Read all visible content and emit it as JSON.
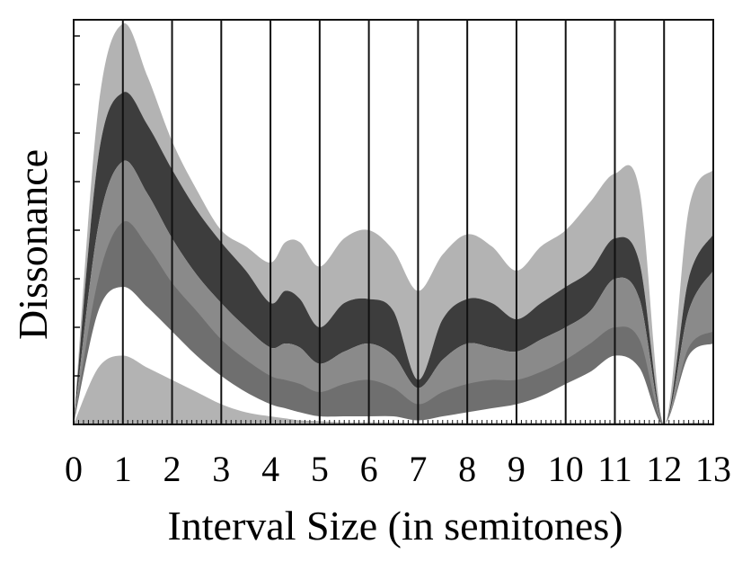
{
  "chart_data": {
    "type": "area",
    "title": "",
    "xlabel": "Interval Size (in semitones)",
    "ylabel": "Dissonance",
    "xlim": [
      0,
      13
    ],
    "ylim": [
      0,
      1
    ],
    "x_ticks": [
      "0",
      "1",
      "2",
      "3",
      "4",
      "5",
      "6",
      "7",
      "8",
      "9",
      "10",
      "11",
      "12",
      "13"
    ],
    "vertical_gridlines": [
      1,
      2,
      3,
      4,
      5,
      6,
      7,
      8,
      9,
      10,
      11,
      12
    ],
    "y_ticks_unlabeled": [
      0.12,
      0.24,
      0.36,
      0.48,
      0.6,
      0.72,
      0.84,
      0.96
    ],
    "grid": true,
    "x": [
      0,
      0.5,
      1,
      1.5,
      2,
      2.5,
      3,
      3.5,
      4,
      4.3,
      4.6,
      5,
      5.5,
      6,
      6.5,
      7,
      7.5,
      8,
      8.5,
      9,
      9.5,
      10,
      10.5,
      11,
      11.5,
      12,
      12.5,
      13
    ],
    "bands": [
      {
        "fill": "#b3b3b3",
        "upper": [
          0.0,
          0.78,
          0.99,
          0.86,
          0.7,
          0.58,
          0.48,
          0.44,
          0.4,
          0.45,
          0.45,
          0.39,
          0.46,
          0.48,
          0.43,
          0.33,
          0.42,
          0.47,
          0.44,
          0.38,
          0.44,
          0.48,
          0.55,
          0.62,
          0.58,
          0.0,
          0.53,
          0.63
        ],
        "lower": [
          0.0,
          0.66,
          0.82,
          0.74,
          0.63,
          0.53,
          0.45,
          0.38,
          0.3,
          0.33,
          0.31,
          0.24,
          0.3,
          0.31,
          0.28,
          0.11,
          0.26,
          0.31,
          0.3,
          0.26,
          0.3,
          0.34,
          0.38,
          0.46,
          0.4,
          0.0,
          0.36,
          0.47
        ]
      },
      {
        "fill": "#3d3d3d",
        "upper": [
          0.0,
          0.66,
          0.82,
          0.74,
          0.63,
          0.53,
          0.45,
          0.38,
          0.3,
          0.33,
          0.31,
          0.24,
          0.3,
          0.31,
          0.28,
          0.11,
          0.26,
          0.31,
          0.3,
          0.26,
          0.3,
          0.34,
          0.38,
          0.46,
          0.4,
          0.0,
          0.36,
          0.47
        ],
        "lower": [
          0.0,
          0.49,
          0.65,
          0.57,
          0.46,
          0.37,
          0.3,
          0.24,
          0.19,
          0.2,
          0.19,
          0.15,
          0.18,
          0.2,
          0.17,
          0.09,
          0.16,
          0.2,
          0.19,
          0.18,
          0.21,
          0.24,
          0.28,
          0.36,
          0.31,
          0.0,
          0.28,
          0.38
        ]
      },
      {
        "fill": "#8a8a8a",
        "upper": [
          0.0,
          0.49,
          0.65,
          0.57,
          0.46,
          0.37,
          0.3,
          0.24,
          0.19,
          0.2,
          0.19,
          0.15,
          0.18,
          0.2,
          0.17,
          0.09,
          0.16,
          0.2,
          0.19,
          0.18,
          0.21,
          0.24,
          0.28,
          0.36,
          0.31,
          0.0,
          0.28,
          0.38
        ]
      },
      {
        "fill": "#6f6f6f",
        "upper": [
          0.0,
          0.36,
          0.5,
          0.44,
          0.35,
          0.28,
          0.21,
          0.16,
          0.12,
          0.11,
          0.1,
          0.08,
          0.1,
          0.11,
          0.09,
          0.05,
          0.08,
          0.1,
          0.11,
          0.11,
          0.13,
          0.16,
          0.2,
          0.24,
          0.21,
          0.0,
          0.19,
          0.23
        ]
      },
      {
        "fill": "#ffffff",
        "upper": [
          0.0,
          0.28,
          0.34,
          0.29,
          0.23,
          0.17,
          0.12,
          0.08,
          0.05,
          0.04,
          0.03,
          0.02,
          0.02,
          0.02,
          0.02,
          0.01,
          0.02,
          0.03,
          0.04,
          0.05,
          0.07,
          0.1,
          0.13,
          0.17,
          0.14,
          0.0,
          0.17,
          0.2
        ]
      },
      {
        "fill": "#b3b3b3",
        "upper": [
          0.0,
          0.14,
          0.17,
          0.14,
          0.11,
          0.08,
          0.05,
          0.03,
          0.02,
          0.015,
          0.01,
          0.008,
          0.005,
          0.005,
          0.005,
          0.003,
          0.004,
          0.004,
          0.004,
          0.004,
          0.004,
          0.004,
          0.004,
          0.004,
          0.004,
          0.0,
          0.004,
          0.004
        ]
      }
    ]
  }
}
